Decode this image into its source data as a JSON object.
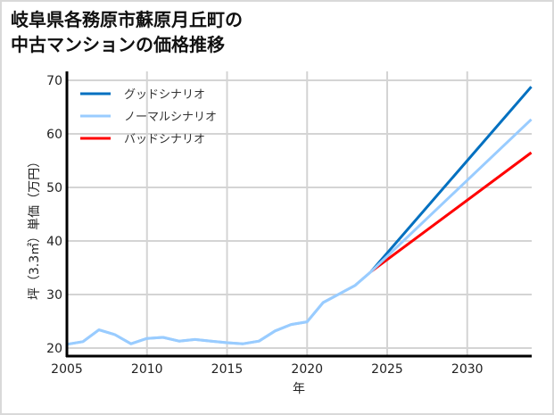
{
  "title_line1": "岐阜県各務原市蘇原月丘町の",
  "title_line2": "中古マンションの価格推移",
  "chart_data": {
    "type": "line",
    "title": "岐阜県各務原市蘇原月丘町の中古マンションの価格推移",
    "xlabel": "年",
    "ylabel": "坪（3.3㎡）単価（万円）",
    "xlim": [
      2005,
      2034
    ],
    "ylim": [
      18,
      71
    ],
    "xticks": [
      2005,
      2010,
      2015,
      2020,
      2025,
      2030
    ],
    "yticks": [
      20,
      30,
      40,
      50,
      60,
      70
    ],
    "grid": true,
    "legend_position": "upper left",
    "series": [
      {
        "name": "ノーマルシナリオ",
        "color": "#99ccff",
        "x": [
          2005,
          2006,
          2007,
          2008,
          2009,
          2010,
          2011,
          2012,
          2013,
          2014,
          2015,
          2016,
          2017,
          2018,
          2019,
          2020,
          2021,
          2022,
          2023,
          2024,
          2034
        ],
        "values": [
          20.7,
          21.2,
          23.4,
          22.5,
          20.8,
          21.8,
          22.0,
          21.3,
          21.6,
          21.3,
          21.0,
          20.8,
          21.3,
          23.2,
          24.4,
          24.9,
          28.5,
          30.1,
          31.7,
          34.3,
          62.7
        ]
      },
      {
        "name": "グッドシナリオ",
        "color": "#0070c0",
        "x": [
          2024,
          2034
        ],
        "values": [
          34.3,
          68.8
        ]
      },
      {
        "name": "バッドシナリオ",
        "color": "#ff0000",
        "x": [
          2024,
          2034
        ],
        "values": [
          34.3,
          56.5
        ]
      }
    ],
    "legend": [
      "グッドシナリオ",
      "ノーマルシナリオ",
      "バッドシナリオ"
    ]
  }
}
